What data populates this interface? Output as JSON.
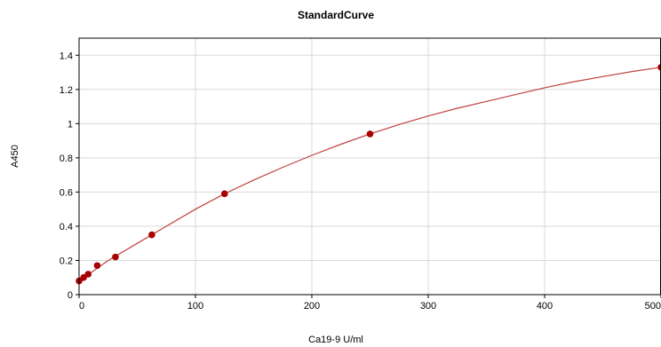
{
  "chart_data": {
    "type": "scatter",
    "title": "StandardCurve",
    "xlabel": "Ca19-9 U/ml",
    "ylabel": "A450",
    "xlim": [
      0,
      500
    ],
    "ylim": [
      0,
      1.5
    ],
    "x_ticks": [
      "0",
      "100",
      "200",
      "300",
      "400",
      "500"
    ],
    "y_ticks": [
      "0",
      "0.2",
      "0.4",
      "0.6",
      "0.8",
      "1",
      "1.2",
      "1.4"
    ],
    "grid": true,
    "colors": {
      "series": "#a80000",
      "fit": "#c04040",
      "grid": "#d9d9d9",
      "axis": "#000000"
    },
    "series": [
      {
        "x": [
          0,
          3.9,
          7.8,
          15.6,
          31.25,
          62.5,
          125,
          250,
          500
        ],
        "y": [
          0.08,
          0.1,
          0.12,
          0.17,
          0.22,
          0.35,
          0.59,
          0.94,
          1.33
        ]
      }
    ],
    "fit": {
      "x": [
        0,
        25,
        50,
        75,
        100,
        125,
        150,
        175,
        200,
        225,
        250,
        275,
        300,
        325,
        350,
        375,
        400,
        425,
        450,
        475,
        500
      ],
      "y": [
        0.08,
        0.2,
        0.3,
        0.4,
        0.5,
        0.59,
        0.67,
        0.745,
        0.815,
        0.88,
        0.94,
        0.995,
        1.045,
        1.09,
        1.13,
        1.17,
        1.21,
        1.245,
        1.275,
        1.305,
        1.33
      ]
    }
  }
}
